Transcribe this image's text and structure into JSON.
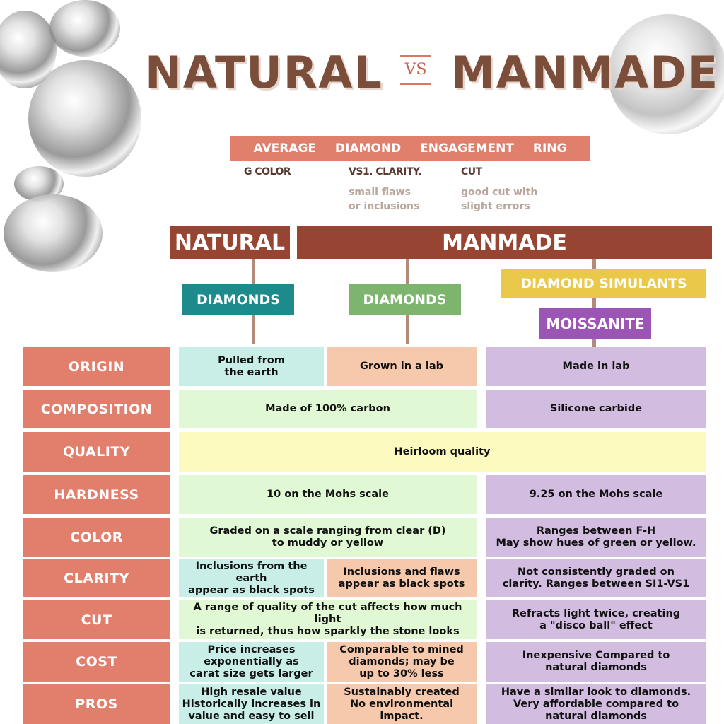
{
  "title": {
    "left": "NATURAL",
    "vs": "VS",
    "right": "MANMADE"
  },
  "banner": [
    "AVERAGE",
    "DIAMOND",
    "ENGAGEMENT",
    "RING"
  ],
  "specs": [
    {
      "label": "G COLOR",
      "note": ""
    },
    {
      "label": "VS1. CLARITY.",
      "note": "small flaws\nor inclusions"
    },
    {
      "label": "CUT",
      "note": "good cut with\nslight errors"
    }
  ],
  "headers": {
    "natural": "NATURAL",
    "manmade": "MANMADE"
  },
  "categories": {
    "natural_diamonds": "DIAMONDS",
    "lab_diamonds": "DIAMONDS",
    "simulants": "DIAMOND SIMULANTS",
    "moissanite": "MOISSANITE"
  },
  "colors": {
    "teal": "#1d8a8c",
    "green": "#7db56e",
    "yellow": "#e9c84a",
    "purple": "#9a55b5",
    "brown": "#974532",
    "salmon": "#e27f6c"
  },
  "rows": [
    {
      "label": "ORIGIN",
      "cells": [
        {
          "col": "natural",
          "text": "Pulled from\nthe earth"
        },
        {
          "col": "lab",
          "text": "Grown in a lab"
        },
        {
          "col": "simulant",
          "text": "Made in lab"
        }
      ]
    },
    {
      "label": "COMPOSITION",
      "cells": [
        {
          "col": "diamonds",
          "text": "Made of 100% carbon"
        },
        {
          "col": "simulant",
          "text": "Silicone carbide"
        }
      ]
    },
    {
      "label": "QUALITY",
      "cells": [
        {
          "col": "all",
          "text": "Heirloom quality"
        }
      ]
    },
    {
      "label": "HARDNESS",
      "cells": [
        {
          "col": "diamonds",
          "text": "10 on the Mohs scale"
        },
        {
          "col": "simulant",
          "text": "9.25 on the Mohs scale"
        }
      ]
    },
    {
      "label": "COLOR",
      "cells": [
        {
          "col": "diamonds",
          "text": "Graded on a scale ranging from clear (D)\nto muddy or yellow"
        },
        {
          "col": "simulant",
          "text": "Ranges between F-H\nMay show hues of green or yellow."
        }
      ]
    },
    {
      "label": "CLARITY",
      "cells": [
        {
          "col": "natural",
          "text": "Inclusions from the earth\nappear as black spots"
        },
        {
          "col": "lab",
          "text": "Inclusions and flaws\nappear as black spots"
        },
        {
          "col": "simulant",
          "text": "Not consistently graded on\nclarity. Ranges between SI1-VS1"
        }
      ]
    },
    {
      "label": "CUT",
      "cells": [
        {
          "col": "diamonds",
          "text": "A range of quality of the cut affects how much light\nis returned, thus how sparkly the stone looks"
        },
        {
          "col": "simulant",
          "text": "Refracts light twice, creating\na \"disco ball\" effect"
        }
      ]
    },
    {
      "label": "COST",
      "cells": [
        {
          "col": "natural",
          "text": "Price increases\nexponentially as\ncarat size gets larger"
        },
        {
          "col": "lab",
          "text": "Comparable to mined\ndiamonds; may be\nup to 30% less"
        },
        {
          "col": "simulant",
          "text": "Inexpensive Compared to\nnatural diamonds"
        }
      ]
    },
    {
      "label": "PROS",
      "cells": [
        {
          "col": "natural",
          "text": "High resale value\nHistorically increases in\nvalue and easy to sell"
        },
        {
          "col": "lab",
          "text": "Sustainably created\nNo environmental impact."
        },
        {
          "col": "simulant",
          "text": "Have a similar look to diamonds.\nVery affordable compared to\nnatural diamonds"
        }
      ]
    }
  ]
}
